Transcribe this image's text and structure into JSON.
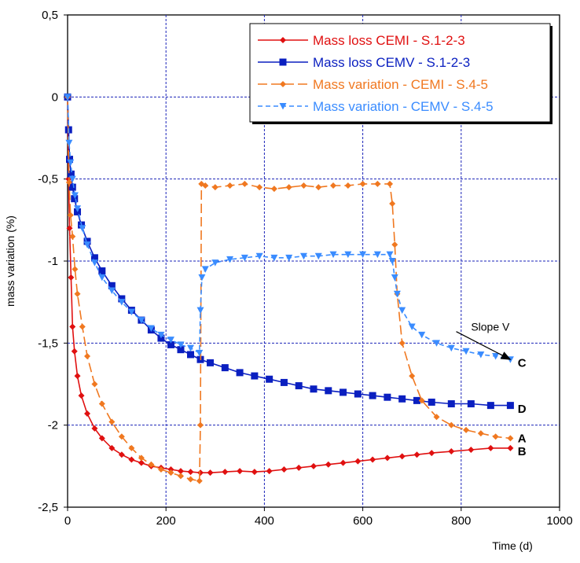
{
  "chart_data": {
    "type": "line",
    "title": "",
    "xlabel": "Time (d)",
    "ylabel": "mass variation (%)",
    "xlim": [
      0,
      1000
    ],
    "ylim": [
      -2.5,
      0.5
    ],
    "x_ticks": [
      0,
      200,
      400,
      600,
      800,
      1000
    ],
    "x_tick_labels": [
      "0",
      "200",
      "400",
      "600",
      "800",
      "1000"
    ],
    "y_ticks": [
      -2.5,
      -2,
      -1.5,
      -1,
      -0.5,
      0,
      0.5
    ],
    "y_tick_labels": [
      "-2,5",
      "-2",
      "-1,5",
      "-1",
      "-0,5",
      "0",
      "0,5"
    ],
    "grid": true,
    "legend_position": "top-right",
    "series": [
      {
        "name": "Mass loss CEMI - S.1-2-3",
        "color": "#e01010",
        "marker": "diamond",
        "dash": "solid",
        "x": [
          0,
          2,
          4,
          7,
          10,
          14,
          20,
          28,
          40,
          55,
          70,
          90,
          110,
          130,
          150,
          170,
          190,
          210,
          230,
          250,
          270,
          290,
          320,
          350,
          380,
          410,
          440,
          470,
          500,
          530,
          560,
          590,
          620,
          650,
          680,
          710,
          740,
          780,
          820,
          860,
          900
        ],
        "y": [
          0,
          -0.5,
          -0.8,
          -1.1,
          -1.4,
          -1.55,
          -1.7,
          -1.82,
          -1.93,
          -2.02,
          -2.08,
          -2.14,
          -2.18,
          -2.21,
          -2.23,
          -2.25,
          -2.26,
          -2.27,
          -2.28,
          -2.285,
          -2.29,
          -2.29,
          -2.285,
          -2.28,
          -2.285,
          -2.28,
          -2.27,
          -2.26,
          -2.25,
          -2.24,
          -2.23,
          -2.22,
          -2.21,
          -2.2,
          -2.19,
          -2.18,
          -2.17,
          -2.16,
          -2.15,
          -2.14,
          -2.14
        ]
      },
      {
        "name": "Mass loss CEMV - S.1-2-3",
        "color": "#0a1fc0",
        "marker": "square",
        "dash": "solid",
        "x": [
          0,
          2,
          4,
          7,
          10,
          14,
          20,
          28,
          40,
          55,
          70,
          90,
          110,
          130,
          150,
          170,
          190,
          210,
          230,
          250,
          270,
          290,
          320,
          350,
          380,
          410,
          440,
          470,
          500,
          530,
          560,
          590,
          620,
          650,
          680,
          710,
          740,
          780,
          820,
          860,
          900
        ],
        "y": [
          0,
          -0.2,
          -0.38,
          -0.47,
          -0.55,
          -0.62,
          -0.7,
          -0.78,
          -0.88,
          -0.98,
          -1.06,
          -1.15,
          -1.23,
          -1.3,
          -1.36,
          -1.42,
          -1.47,
          -1.51,
          -1.54,
          -1.57,
          -1.6,
          -1.62,
          -1.65,
          -1.68,
          -1.7,
          -1.72,
          -1.74,
          -1.76,
          -1.78,
          -1.79,
          -1.8,
          -1.81,
          -1.82,
          -1.83,
          -1.84,
          -1.85,
          -1.86,
          -1.87,
          -1.87,
          -1.88,
          -1.88
        ]
      },
      {
        "name": "Mass variation - CEMI - S.4-5",
        "color": "#f07820",
        "marker": "diamond",
        "dash": "long-dash",
        "x": [
          0,
          3,
          6,
          10,
          15,
          20,
          30,
          40,
          55,
          70,
          90,
          110,
          130,
          150,
          170,
          190,
          210,
          230,
          250,
          268,
          270,
          272,
          280,
          300,
          330,
          360,
          390,
          420,
          450,
          480,
          510,
          540,
          570,
          600,
          630,
          655,
          660,
          665,
          670,
          680,
          700,
          720,
          750,
          780,
          810,
          840,
          870,
          900
        ],
        "y": [
          0,
          -0.52,
          -0.72,
          -0.85,
          -1.05,
          -1.2,
          -1.4,
          -1.58,
          -1.75,
          -1.87,
          -1.98,
          -2.07,
          -2.14,
          -2.2,
          -2.24,
          -2.27,
          -2.29,
          -2.31,
          -2.33,
          -2.34,
          -2.0,
          -0.53,
          -0.54,
          -0.55,
          -0.54,
          -0.53,
          -0.55,
          -0.56,
          -0.55,
          -0.54,
          -0.55,
          -0.54,
          -0.54,
          -0.53,
          -0.53,
          -0.53,
          -0.65,
          -0.9,
          -1.2,
          -1.5,
          -1.7,
          -1.85,
          -1.95,
          -2.0,
          -2.03,
          -2.05,
          -2.07,
          -2.08
        ]
      },
      {
        "name": "Mass variation - CEMV - S.4-5",
        "color": "#3a8cff",
        "marker": "triangle-down",
        "dash": "short-dash",
        "x": [
          0,
          3,
          6,
          10,
          15,
          20,
          30,
          40,
          55,
          70,
          90,
          110,
          130,
          150,
          170,
          190,
          210,
          230,
          250,
          268,
          270,
          273,
          280,
          300,
          330,
          360,
          390,
          420,
          450,
          480,
          510,
          540,
          570,
          600,
          630,
          655,
          660,
          665,
          670,
          680,
          700,
          720,
          750,
          780,
          810,
          840,
          870,
          900
        ],
        "y": [
          0,
          -0.28,
          -0.4,
          -0.5,
          -0.6,
          -0.68,
          -0.8,
          -0.9,
          -1.01,
          -1.1,
          -1.18,
          -1.25,
          -1.31,
          -1.36,
          -1.41,
          -1.45,
          -1.48,
          -1.51,
          -1.53,
          -1.56,
          -1.3,
          -1.1,
          -1.05,
          -1.01,
          -0.99,
          -0.98,
          -0.97,
          -0.98,
          -0.98,
          -0.97,
          -0.97,
          -0.96,
          -0.96,
          -0.96,
          -0.96,
          -0.96,
          -1.0,
          -1.1,
          -1.2,
          -1.3,
          -1.4,
          -1.45,
          -1.5,
          -1.53,
          -1.55,
          -1.57,
          -1.58,
          -1.6
        ]
      }
    ],
    "annotations": [
      {
        "text": "A",
        "x": 915,
        "y": -2.08
      },
      {
        "text": "B",
        "x": 915,
        "y": -2.16
      },
      {
        "text": "C",
        "x": 915,
        "y": -1.62
      },
      {
        "text": "D",
        "x": 915,
        "y": -1.9
      },
      {
        "text": "Slope V",
        "x": 820,
        "y": -1.4
      }
    ],
    "slope_arrow": {
      "from": [
        790,
        -1.43
      ],
      "to": [
        900,
        -1.6
      ]
    }
  }
}
